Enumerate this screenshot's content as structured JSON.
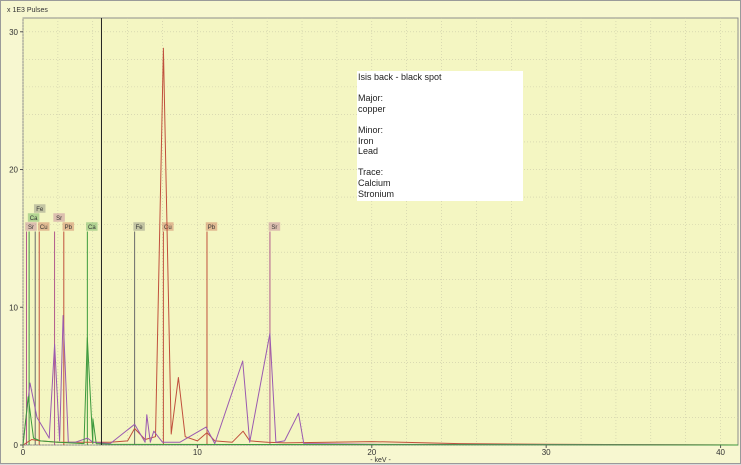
{
  "chart_data": {
    "type": "line",
    "ylabel": "x 1E3 Pulses",
    "xlabel": "- keV -",
    "xlim": [
      0,
      41
    ],
    "ylim": [
      0,
      31
    ],
    "x_ticks": [
      0,
      10,
      20,
      30,
      40
    ],
    "y_ticks": [
      0,
      10,
      20,
      30
    ],
    "grid": true,
    "cursor_x": 4.5,
    "element_markers": [
      {
        "element": "Sr",
        "energy": 0.2,
        "color": "#b05a8c",
        "row": 0
      },
      {
        "element": "Ca",
        "energy": 0.35,
        "color": "#3d9a3d",
        "row": 1
      },
      {
        "element": "Fe",
        "energy": 0.7,
        "color": "#6b6b6b",
        "row": 2
      },
      {
        "element": "Cu",
        "energy": 0.93,
        "color": "#c0503c",
        "row": 0
      },
      {
        "element": "Sr",
        "energy": 1.81,
        "color": "#b05a8c",
        "row": 1
      },
      {
        "element": "Pb",
        "energy": 2.34,
        "color": "#c0503c",
        "row": 0
      },
      {
        "element": "Ca",
        "energy": 3.69,
        "color": "#3d9a3d",
        "row": 0
      },
      {
        "element": "Fe",
        "energy": 6.4,
        "color": "#6b6b6b",
        "row": 0
      },
      {
        "element": "Cu",
        "energy": 8.05,
        "color": "#c0503c",
        "row": 0
      },
      {
        "element": "Pb",
        "energy": 10.55,
        "color": "#c0503c",
        "row": 0
      },
      {
        "element": "Sr",
        "energy": 14.16,
        "color": "#b05a8c",
        "row": 0
      }
    ],
    "series": [
      {
        "color": "#c0503c",
        "points": [
          [
            0,
            0
          ],
          [
            0.5,
            0.4
          ],
          [
            1,
            0.3
          ],
          [
            2,
            0.2
          ],
          [
            3,
            0.2
          ],
          [
            4,
            0.2
          ],
          [
            5,
            0.2
          ],
          [
            6,
            0.3
          ],
          [
            6.4,
            1.2
          ],
          [
            7,
            0.4
          ],
          [
            7.6,
            0.6
          ],
          [
            8.05,
            28.8
          ],
          [
            8.5,
            0.8
          ],
          [
            8.91,
            4.9
          ],
          [
            9.3,
            0.6
          ],
          [
            10,
            0.3
          ],
          [
            10.55,
            0.9
          ],
          [
            11,
            0.3
          ],
          [
            12,
            0.2
          ],
          [
            12.62,
            1.0
          ],
          [
            13,
            0.3
          ],
          [
            14,
            0.2
          ],
          [
            15,
            0.15
          ],
          [
            20,
            0.25
          ],
          [
            25,
            0.1
          ],
          [
            30,
            0.05
          ],
          [
            41,
            0.0
          ]
        ]
      },
      {
        "color": "#9a5ab0",
        "points": [
          [
            0,
            0
          ],
          [
            0.4,
            4.5
          ],
          [
            0.8,
            2.0
          ],
          [
            1.5,
            0.5
          ],
          [
            1.81,
            7.3
          ],
          [
            2.1,
            0.3
          ],
          [
            2.3,
            9.4
          ],
          [
            2.6,
            0.2
          ],
          [
            3,
            0.2
          ],
          [
            3.7,
            0.5
          ],
          [
            4,
            0.2
          ],
          [
            5,
            0.1
          ],
          [
            6.4,
            1.5
          ],
          [
            7,
            0.2
          ],
          [
            7.1,
            2.2
          ],
          [
            7.3,
            0.2
          ],
          [
            7.5,
            1.0
          ],
          [
            8,
            0.2
          ],
          [
            9,
            0.2
          ],
          [
            10.5,
            1.3
          ],
          [
            11,
            0.1
          ],
          [
            12.6,
            6.1
          ],
          [
            13,
            0.2
          ],
          [
            14.16,
            8.1
          ],
          [
            14.5,
            0.2
          ],
          [
            15,
            0.3
          ],
          [
            15.8,
            2.3
          ],
          [
            16.1,
            0.1
          ],
          [
            20,
            0.05
          ],
          [
            41,
            0.0
          ]
        ]
      },
      {
        "color": "#3d9a3d",
        "points": [
          [
            0,
            0
          ],
          [
            0.3,
            3.5
          ],
          [
            0.6,
            0.5
          ],
          [
            1,
            0.3
          ],
          [
            2,
            0.2
          ],
          [
            3.5,
            0.1
          ],
          [
            3.69,
            7.8
          ],
          [
            4,
            0.1
          ],
          [
            4.01,
            1.9
          ],
          [
            4.2,
            0.1
          ],
          [
            5,
            0.05
          ],
          [
            41,
            0.0
          ]
        ]
      }
    ]
  },
  "annotation": {
    "title": "Isis back - black spot",
    "major_heading": "Major:",
    "major_items": [
      "copper"
    ],
    "minor_heading": "Minor:",
    "minor_items": [
      "Iron",
      "Lead"
    ],
    "trace_heading": "Trace:",
    "trace_items": [
      "Calcium",
      "Stronium"
    ]
  }
}
